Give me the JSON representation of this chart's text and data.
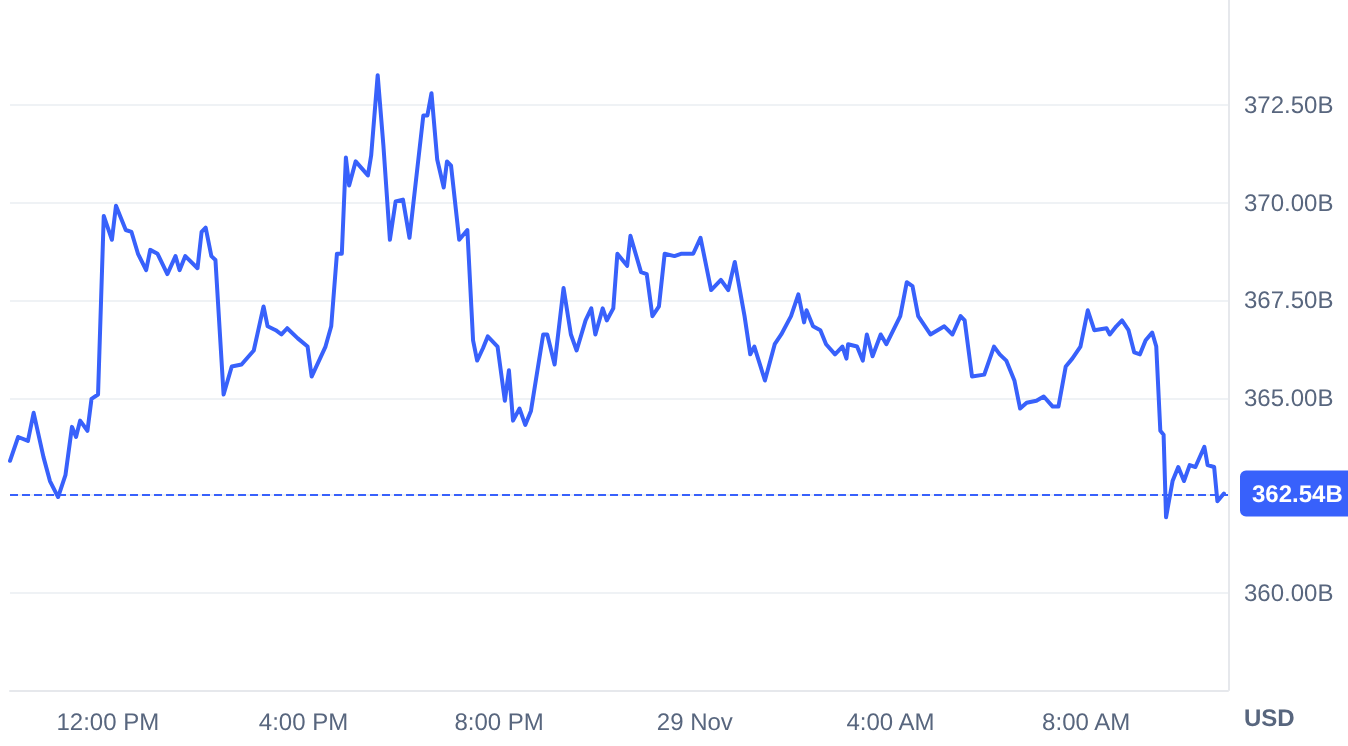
{
  "chart_data": {
    "type": "line",
    "ylabel": "USD",
    "grid": "y",
    "marker": "none",
    "line_style": "solid",
    "xlim": [
      "--11-28T10:00",
      "--11-29T10:54"
    ],
    "ylim": [
      357.5,
      375.2
    ],
    "xticks": [
      {
        "value": "--11-28T12:00",
        "label": "12:00 PM"
      },
      {
        "value": "--11-28T16:00",
        "label": "4:00 PM"
      },
      {
        "value": "--11-28T20:00",
        "label": "8:00 PM"
      },
      {
        "value": "--11-29T00:00",
        "label": "29 Nov"
      },
      {
        "value": "--11-29T04:00",
        "label": "4:00 AM"
      },
      {
        "value": "--11-29T08:00",
        "label": "8:00 AM"
      }
    ],
    "yticks": [
      {
        "value": 360,
        "label": "360.00B"
      },
      {
        "value": 362.5,
        "label": null
      },
      {
        "value": 365,
        "label": "365.00B"
      },
      {
        "value": 367.5,
        "label": "367.50B"
      },
      {
        "value": 370,
        "label": "370.00B"
      },
      {
        "value": 372.5,
        "label": "372.50B"
      }
    ],
    "ref_lines": [
      {
        "axis": "y",
        "value": 362.54,
        "label": "362.54B",
        "color": "#3861fb"
      }
    ],
    "series": [
      {
        "color": "#3861fb",
        "x": [
          "--11-28T10:00",
          "--11-28T10:10",
          "--11-28T10:22",
          "--11-28T10:29",
          "--11-28T10:41",
          "--11-28T10:49",
          "--11-28T10:59",
          "--11-28T11:08",
          "--11-28T11:16",
          "--11-28T11:21",
          "--11-28T11:26",
          "--11-28T11:35",
          "--11-28T11:40",
          "--11-28T11:48",
          "--11-28T11:55",
          "--11-28T12:05",
          "--11-28T12:10",
          "--11-28T12:22",
          "--11-28T12:29",
          "--11-28T12:37",
          "--11-28T12:47",
          "--11-28T12:52",
          "--11-28T13:01",
          "--11-28T13:13",
          "--11-28T13:23",
          "--11-28T13:28",
          "--11-28T13:35",
          "--11-28T13:50",
          "--11-28T13:55",
          "--11-28T14:00",
          "--11-28T14:07",
          "--11-28T14:12",
          "--11-28T14:22",
          "--11-28T14:32",
          "--11-28T14:44",
          "--11-28T14:59",
          "--11-28T15:11",
          "--11-28T15:16",
          "--11-28T15:26",
          "--11-28T15:33",
          "--11-28T15:40",
          "--11-28T15:53",
          "--11-28T16:05",
          "--11-28T16:10",
          "--11-28T16:27",
          "--11-28T16:34",
          "--11-28T16:41",
          "--11-28T16:47",
          "--11-28T16:52",
          "--11-28T16:56",
          "--11-28T17:04",
          "--11-28T17:19",
          "--11-28T17:23",
          "--11-28T17:31",
          "--11-28T17:38",
          "--11-28T17:46",
          "--11-28T17:53",
          "--11-28T18:02",
          "--11-28T18:10",
          "--11-28T18:27",
          "--11-28T18:32",
          "--11-28T18:37",
          "--11-28T18:44",
          "--11-28T18:52",
          "--11-28T18:56",
          "--11-28T19:01",
          "--11-28T19:11",
          "--11-28T19:21",
          "--11-28T19:28",
          "--11-28T19:33",
          "--11-28T19:40",
          "--11-28T19:46",
          "--11-28T19:58",
          "--11-28T20:07",
          "--11-28T20:12",
          "--11-28T20:17",
          "--11-28T20:25",
          "--11-28T20:32",
          "--11-28T20:39",
          "--11-28T20:54",
          "--11-28T20:59",
          "--11-28T21:08",
          "--11-28T21:19",
          "--11-28T21:28",
          "--11-28T21:35",
          "--11-28T21:46",
          "--11-28T21:53",
          "--11-28T21:58",
          "--11-28T22:07",
          "--11-28T22:12",
          "--11-28T22:20",
          "--11-28T22:25",
          "--11-28T22:37",
          "--11-28T22:41",
          "--11-28T22:54",
          "--11-28T23:01",
          "--11-28T23:08",
          "--11-28T23:16",
          "--11-28T23:23",
          "--11-28T23:35",
          "--11-28T23:43",
          "--11-28T23:58",
          "--11-29T00:07",
          "--11-29T00:20",
          "--11-29T00:32",
          "--11-29T00:41",
          "--11-29T00:49",
          "--11-29T01:01",
          "--11-29T01:08",
          "--11-29T01:13",
          "--11-29T01:26",
          "--11-29T01:38",
          "--11-29T01:46",
          "--11-29T01:58",
          "--11-29T02:07",
          "--11-29T02:14",
          "--11-29T02:17",
          "--11-29T02:25",
          "--11-29T02:34",
          "--11-29T02:41",
          "--11-29T02:52",
          "--11-29T03:01",
          "--11-29T03:06",
          "--11-29T03:08",
          "--11-29T03:19",
          "--11-29T03:26",
          "--11-29T03:31",
          "--11-29T03:38",
          "--11-29T03:48",
          "--11-29T03:55",
          "--11-29T04:12",
          "--11-29T04:20",
          "--11-29T04:27",
          "--11-29T04:34",
          "--11-29T04:49",
          "--11-29T05:06",
          "--11-29T05:16",
          "--11-29T05:26",
          "--11-29T05:31",
          "--11-29T05:40",
          "--11-29T05:55",
          "--11-29T06:07",
          "--11-29T06:14",
          "--11-29T06:22",
          "--11-29T06:32",
          "--11-29T06:39",
          "--11-29T06:47",
          "--11-29T06:59",
          "--11-29T07:08",
          "--11-29T07:19",
          "--11-29T07:26",
          "--11-29T07:35",
          "--11-29T07:43",
          "--11-29T07:53",
          "--11-29T08:02",
          "--11-29T08:10",
          "--11-29T08:25",
          "--11-29T08:29",
          "--11-29T08:37",
          "--11-29T08:44",
          "--11-29T08:52",
          "--11-29T08:59",
          "--11-29T09:06",
          "--11-29T09:13",
          "--11-29T09:21",
          "--11-29T09:26",
          "--11-29T09:31",
          "--11-29T09:35",
          "--11-29T09:38",
          "--11-29T09:46",
          "--11-29T09:53",
          "--11-29T10:00",
          "--11-29T10:07",
          "--11-29T10:14",
          "--11-29T10:25",
          "--11-29T10:29",
          "--11-29T10:37",
          "--11-29T10:41",
          "--11-29T10:49"
        ],
        "values": [
          363.38,
          363.99,
          363.89,
          364.61,
          363.48,
          362.86,
          362.45,
          363.01,
          364.25,
          363.99,
          364.41,
          364.15,
          364.97,
          365.08,
          369.66,
          369.05,
          369.92,
          369.3,
          369.25,
          368.69,
          368.27,
          368.79,
          368.69,
          368.17,
          368.63,
          368.27,
          368.63,
          368.32,
          369.25,
          369.36,
          368.63,
          368.53,
          365.08,
          365.8,
          365.85,
          366.21,
          367.34,
          366.83,
          366.73,
          366.62,
          366.78,
          366.52,
          366.31,
          365.54,
          366.31,
          366.83,
          368.69,
          368.69,
          371.16,
          370.44,
          371.06,
          370.7,
          371.21,
          373.27,
          371.47,
          369.05,
          370.03,
          370.08,
          369.1,
          372.24,
          372.24,
          372.81,
          371.11,
          370.39,
          371.06,
          370.95,
          369.05,
          369.3,
          366.47,
          365.95,
          366.26,
          366.57,
          366.31,
          364.92,
          365.7,
          364.41,
          364.72,
          364.3,
          364.66,
          366.62,
          366.62,
          365.85,
          367.81,
          366.62,
          366.21,
          366.98,
          367.29,
          366.62,
          367.29,
          366.98,
          367.29,
          368.69,
          368.38,
          369.15,
          368.22,
          368.17,
          367.09,
          367.34,
          368.69,
          368.63,
          368.69,
          368.69,
          369.1,
          367.76,
          368.02,
          367.76,
          368.48,
          367.09,
          366.11,
          366.31,
          365.44,
          366.37,
          366.62,
          367.09,
          367.65,
          366.93,
          367.24,
          366.83,
          366.73,
          366.37,
          366.11,
          366.31,
          366.0,
          366.37,
          366.31,
          365.95,
          366.62,
          366.06,
          366.62,
          366.37,
          367.09,
          367.96,
          367.86,
          367.09,
          366.62,
          366.83,
          366.62,
          367.09,
          366.98,
          365.54,
          365.59,
          366.31,
          366.11,
          365.95,
          365.44,
          364.72,
          364.87,
          364.92,
          365.03,
          364.77,
          364.77,
          365.8,
          366.0,
          366.31,
          367.24,
          366.73,
          366.78,
          366.62,
          366.83,
          366.98,
          366.73,
          366.16,
          366.11,
          366.47,
          366.67,
          366.31,
          364.15,
          364.05,
          361.93,
          362.86,
          363.22,
          362.86,
          363.27,
          363.22,
          363.74,
          363.27,
          363.22,
          362.34,
          362.54
        ]
      }
    ]
  }
}
